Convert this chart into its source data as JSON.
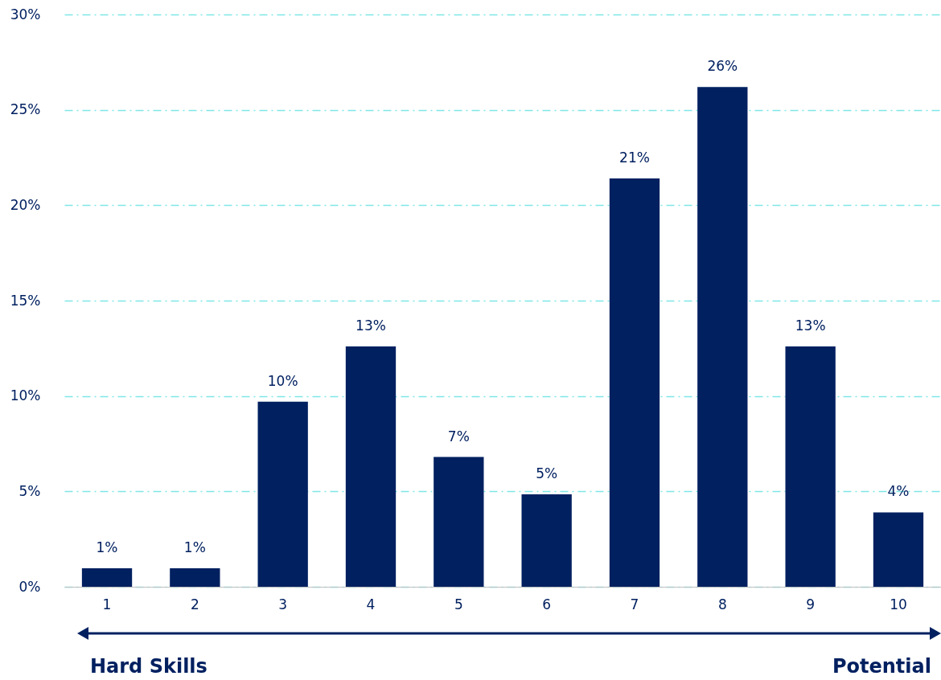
{
  "chart_data": {
    "type": "bar",
    "categories": [
      "1",
      "2",
      "3",
      "4",
      "5",
      "6",
      "7",
      "8",
      "9",
      "10"
    ],
    "values": [
      0.97,
      0.97,
      9.7,
      12.6,
      6.8,
      4.85,
      21.4,
      26.2,
      12.6,
      3.9
    ],
    "value_labels": [
      "1%",
      "1%",
      "10%",
      "13%",
      "7%",
      "5%",
      "21%",
      "26%",
      "13%",
      "4%"
    ],
    "color": "#002060",
    "ylim": [
      0,
      30
    ],
    "yticks": [
      {
        "value": 0,
        "label": "0%"
      },
      {
        "value": 5,
        "label": "5%"
      },
      {
        "value": 10,
        "label": "10%"
      },
      {
        "value": 15,
        "label": "15%"
      },
      {
        "value": 20,
        "label": "20%"
      },
      {
        "value": 25,
        "label": "25%"
      },
      {
        "value": 30,
        "label": "30%"
      }
    ],
    "grid": "y",
    "annotations": [
      "Hard Skills",
      "Potential"
    ]
  }
}
